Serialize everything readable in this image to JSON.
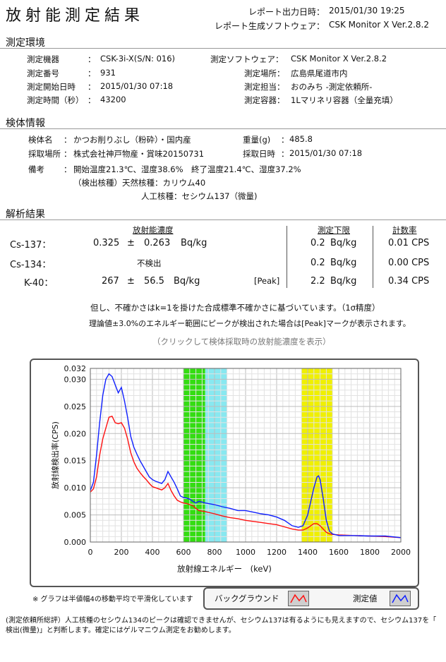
{
  "header": {
    "title": "放射能測定結果",
    "report_time_label": "レポート出力日時：",
    "report_time_value": "2015/01/30 19:25",
    "report_software_label": "レポート生成ソフトウェア：",
    "report_software_value": "CSK Monitor X Ver.2.8.2"
  },
  "env": {
    "heading": "測定環境",
    "device_label": "測定機器",
    "device_value": "CSK-3i-X(S/N: 016)",
    "number_label": "測定番号",
    "number_value": "931",
    "start_label": "測定開始日時",
    "start_value": "2015/01/30 07:18",
    "duration_label": "測定時間（秒）",
    "duration_value": "43200",
    "software_label": "測定ソフトウェア：",
    "software_value": "CSK Monitor X Ver.2.8.2",
    "place_label": "測定場所：",
    "place_value": "広島県尾道市内",
    "staff_label": "測定担当：",
    "staff_value": "おのみち -測定依頼所-",
    "container_label": "測定容器：",
    "container_value": "1Lマリネリ容器（全量充填）",
    "colon": "："
  },
  "sample": {
    "heading": "検体情報",
    "name_label": "検体名",
    "name_value": "かつお削りぶし（粉砕）・国内産",
    "site_label": "採取場所",
    "site_value": "株式会社神戸物産・賞味20150731",
    "weight_label": "重量(g)",
    "weight_value": "485.8",
    "date_label": "採取日時",
    "date_value": "2015/01/30 07:18",
    "remark_label": "備考",
    "remark_line1": "開始温度21.3℃、湿度38.6%　終了温度21.4℃、湿度37.2%",
    "remark_line2": "（検出核種）天然核種：カリウム40",
    "remark_line3": "人工核種：セシウム137（微量)",
    "colon": "："
  },
  "analysis": {
    "heading": "解析結果",
    "col_conc": "放射能濃度",
    "col_limit": "測定下限",
    "col_cps": "計数率",
    "rows": [
      {
        "nuclide": "Cs-137：",
        "value": "0.325",
        "pm": "±",
        "unc": "0.263",
        "unit": "Bq/kg",
        "peak": "",
        "limit": "0.2",
        "limit_unit": "Bq/kg",
        "cps": "0.01 CPS"
      },
      {
        "nuclide": "Cs-134：",
        "value": "不検出",
        "pm": "",
        "unc": "",
        "unit": "",
        "peak": "",
        "limit": "0.2",
        "limit_unit": "Bq/kg",
        "cps": "0.00 CPS"
      },
      {
        "nuclide": "K-40：",
        "value": "267",
        "pm": "±",
        "unc": "56.5",
        "unit": "Bq/kg",
        "peak": "[Peak]",
        "limit": "2.2",
        "limit_unit": "Bq/kg",
        "cps": "0.34 CPS"
      }
    ],
    "note1": "但し、不確かさはk=1を掛けた合成標準不確かさに基づいています。（1σ精度）",
    "note2": "理論値±3.0%のエネルギー範囲にピークが検出された場合は[Peak]マークが表示されます。",
    "click_note": "（クリックして検体採取時の放射能濃度を表示）"
  },
  "graph_note": "※ グラフは半値幅4の移動平均で平滑化しています",
  "legend": {
    "background": "バックグラウンド",
    "measured": "測定値"
  },
  "footer": {
    "line1": "(測定依頼所総評）人工核種のセシウム134のピークは確認できませんが、セシウム137は有るようにも見えますので、セシウム137を「",
    "line2": "検出(微量)」と判断します。確定にはゲルマニウム測定をお勧めします。"
  },
  "chart_data": {
    "type": "line",
    "xlabel": "放射線エネルギー　(keV)",
    "ylabel": "放射線検出率(CPS)",
    "xlim": [
      0,
      2000
    ],
    "ylim": [
      0,
      0.032
    ],
    "xticks": [
      "0",
      "200",
      "400",
      "600",
      "800",
      "1000",
      "1200",
      "1400",
      "1600",
      "1800",
      "2000"
    ],
    "yticks": [
      "0.000",
      "0.005",
      "0.010",
      "0.015",
      "0.020",
      "0.025",
      "0.030"
    ],
    "ytop_label": "0.032",
    "bands": [
      {
        "from": 600,
        "to": 740,
        "color": "#33dd11"
      },
      {
        "from": 740,
        "to": 880,
        "color": "#88e8f0"
      },
      {
        "from": 1360,
        "to": 1560,
        "color": "#f0f000"
      }
    ],
    "grid": true,
    "series": [
      {
        "name": "測定値",
        "color": "#1020ff",
        "x": [
          0,
          20,
          40,
          60,
          80,
          100,
          120,
          140,
          160,
          180,
          200,
          220,
          240,
          260,
          280,
          300,
          320,
          340,
          360,
          380,
          400,
          420,
          440,
          460,
          480,
          500,
          520,
          540,
          560,
          580,
          600,
          620,
          640,
          660,
          680,
          700,
          740,
          800,
          850,
          900,
          950,
          1000,
          1050,
          1100,
          1150,
          1200,
          1250,
          1300,
          1340,
          1370,
          1400,
          1420,
          1440,
          1460,
          1470,
          1480,
          1500,
          1520,
          1540,
          1560,
          1600,
          1700,
          1800,
          1900,
          2000
        ],
        "y": [
          0.0095,
          0.011,
          0.016,
          0.022,
          0.027,
          0.03,
          0.031,
          0.0305,
          0.029,
          0.0275,
          0.0285,
          0.026,
          0.023,
          0.0195,
          0.0175,
          0.0162,
          0.015,
          0.014,
          0.013,
          0.012,
          0.0115,
          0.0112,
          0.011,
          0.0108,
          0.0115,
          0.013,
          0.012,
          0.011,
          0.0098,
          0.0085,
          0.0082,
          0.0081,
          0.0079,
          0.0075,
          0.0072,
          0.0075,
          0.0072,
          0.0069,
          0.0065,
          0.0062,
          0.0058,
          0.0058,
          0.0055,
          0.0052,
          0.005,
          0.0046,
          0.004,
          0.003,
          0.0027,
          0.003,
          0.005,
          0.0075,
          0.01,
          0.012,
          0.0122,
          0.0115,
          0.008,
          0.004,
          0.002,
          0.0015,
          0.0012,
          0.0012,
          0.0011,
          0.0011,
          0.0008
        ]
      },
      {
        "name": "バックグラウンド",
        "color": "#ff1010",
        "x": [
          0,
          20,
          40,
          60,
          80,
          100,
          120,
          140,
          160,
          180,
          200,
          220,
          240,
          260,
          280,
          300,
          320,
          340,
          360,
          380,
          400,
          420,
          440,
          460,
          480,
          500,
          520,
          540,
          560,
          580,
          600,
          620,
          640,
          660,
          680,
          700,
          740,
          800,
          850,
          900,
          950,
          1000,
          1050,
          1100,
          1150,
          1200,
          1250,
          1300,
          1340,
          1370,
          1400,
          1420,
          1440,
          1460,
          1470,
          1480,
          1500,
          1520,
          1540,
          1560,
          1600,
          1700,
          1800,
          1900,
          2000
        ],
        "y": [
          0.0092,
          0.0098,
          0.012,
          0.016,
          0.019,
          0.021,
          0.023,
          0.0232,
          0.022,
          0.0218,
          0.022,
          0.021,
          0.019,
          0.0165,
          0.0148,
          0.0136,
          0.0128,
          0.0121,
          0.0115,
          0.0108,
          0.0102,
          0.01,
          0.0098,
          0.0096,
          0.01,
          0.0108,
          0.0095,
          0.0085,
          0.0077,
          0.0074,
          0.0072,
          0.0071,
          0.0069,
          0.0067,
          0.0062,
          0.0058,
          0.0056,
          0.0052,
          0.0048,
          0.0045,
          0.0043,
          0.004,
          0.0038,
          0.0036,
          0.0034,
          0.0032,
          0.0028,
          0.0024,
          0.0022,
          0.0022,
          0.0026,
          0.003,
          0.0034,
          0.0034,
          0.0032,
          0.003,
          0.0024,
          0.0018,
          0.0015,
          0.0014,
          0.0013,
          0.0012,
          0.0011,
          0.001,
          0.0008
        ]
      }
    ]
  }
}
